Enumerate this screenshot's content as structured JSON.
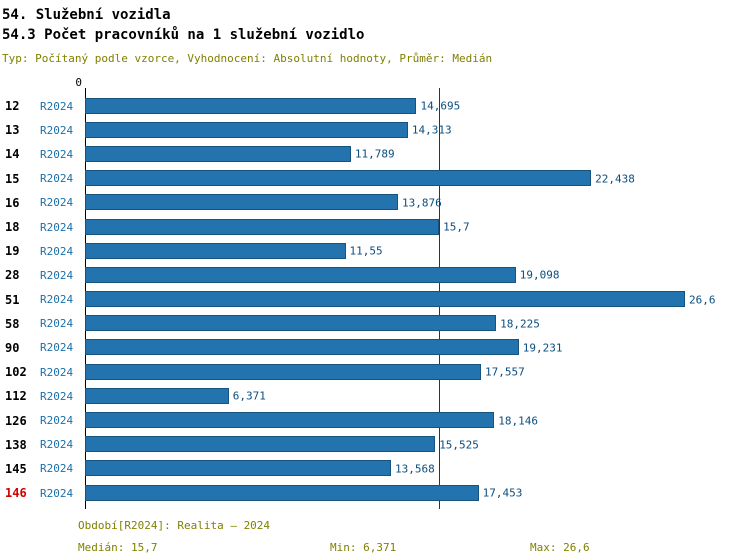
{
  "header": {
    "title": "54. Služební vozidla",
    "subtitle": "54.3 Počet pracovníků na 1 služební vozidlo",
    "meta": "Typ: Počítaný podle vzorce, Vyhodnocení: Absolutní hodnoty, Průměr: Medián"
  },
  "chart_data": {
    "type": "bar",
    "orientation": "horizontal",
    "title": "54.3 Počet pracovníků na 1 služební vozidlo",
    "xlabel": "",
    "ylabel": "",
    "xlim": [
      0,
      26.6
    ],
    "origin_label": "0",
    "series_label": "R2024",
    "categories": [
      "12",
      "13",
      "14",
      "15",
      "16",
      "18",
      "19",
      "28",
      "51",
      "58",
      "90",
      "102",
      "112",
      "126",
      "138",
      "145",
      "146"
    ],
    "values": [
      14.695,
      14.313,
      11.789,
      22.438,
      13.876,
      15.7,
      11.55,
      19.098,
      26.6,
      18.225,
      19.231,
      17.557,
      6.371,
      18.146,
      15.525,
      13.568,
      17.453
    ],
    "value_labels": [
      "14,695",
      "14,313",
      "11,789",
      "22,438",
      "13,876",
      "15,7",
      "11,55",
      "19,098",
      "26,6",
      "18,225",
      "19,231",
      "17,557",
      "6,371",
      "18,146",
      "15,525",
      "13,568",
      "17,453"
    ],
    "median_line": 15.7,
    "highlight_category": "146",
    "grid": false,
    "legend": "none",
    "colors": {
      "bar": "#2273AE",
      "bar_border": "#16537F",
      "series_label": "#1B6FA8",
      "value_label": "#0B4E7E",
      "category_label": "#000000",
      "highlight": "#D00000",
      "muted_text": "#808000",
      "axis_line": "#000000",
      "median_line": "#333333"
    }
  },
  "footer": {
    "period": "Období[R2024]: Realita – 2024",
    "median": "Medián: 15,7",
    "min": "Min: 6,371",
    "max": "Max: 26,6"
  }
}
